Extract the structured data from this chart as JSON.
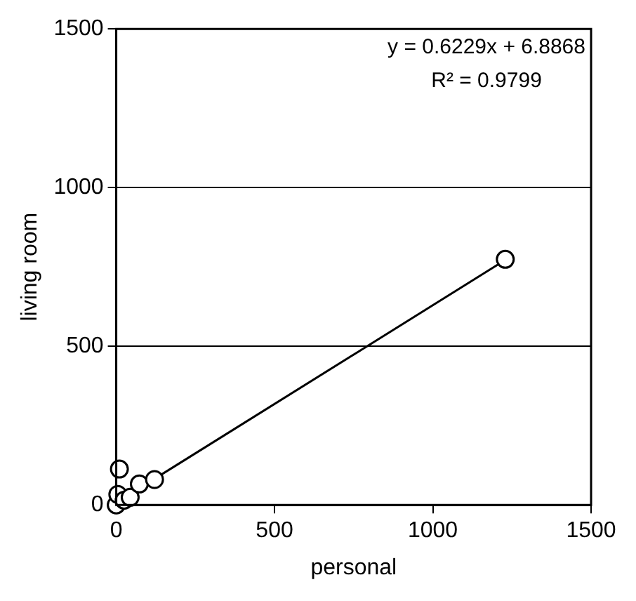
{
  "chart_data": {
    "type": "scatter",
    "xlabel": "personal",
    "ylabel": "living room",
    "xlim": [
      0,
      1500
    ],
    "ylim": [
      0,
      1500
    ],
    "xticks": [
      0,
      500,
      1000,
      1500
    ],
    "yticks": [
      0,
      500,
      1000,
      1500
    ],
    "grid": "y",
    "legend": false,
    "marker": "circle",
    "annotations": [
      "y = 0.6229x + 6.8868",
      "R² = 0.9799"
    ],
    "series": [
      {
        "color": "#000000",
        "x": [
          0,
          5,
          25,
          44,
          73,
          121,
          10,
          1229
        ],
        "values": [
          0,
          33,
          15,
          24,
          66,
          80,
          113,
          774
        ]
      },
      {
        "type": "line",
        "color": "#000000",
        "marker": "none",
        "x": [
          0,
          1229
        ],
        "values": [
          7,
          772
        ]
      }
    ]
  }
}
